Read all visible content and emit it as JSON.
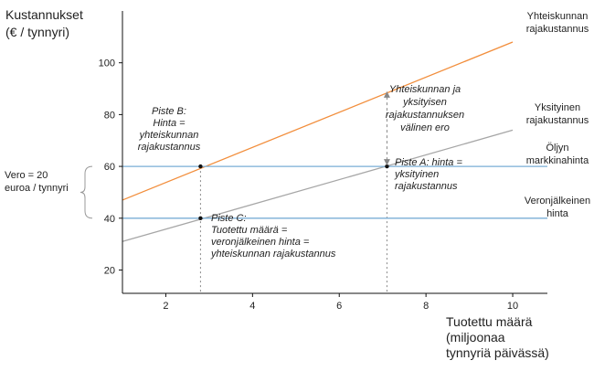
{
  "chart_data": {
    "type": "line",
    "ylabel": [
      "Kustannukset",
      "(€ / tynnyri)"
    ],
    "xlabel": [
      "Tuotettu määrä",
      "(miljoonaa",
      "tynnyriä päivässä)"
    ],
    "xlim": [
      1,
      10.8
    ],
    "ylim": [
      11,
      120
    ],
    "xticks": [
      2,
      4,
      6,
      8,
      10
    ],
    "yticks": [
      20,
      40,
      60,
      80,
      100
    ],
    "grid": false,
    "series": [
      {
        "name": [
          "Yhteiskunnan",
          "rajakustannus"
        ],
        "color": "#f28e3c",
        "x": [
          1,
          10
        ],
        "y": [
          47,
          108
        ]
      },
      {
        "name": [
          "Yksityinen",
          "rajakustannus"
        ],
        "color": "#a6a6a6",
        "x": [
          1,
          10
        ],
        "y": [
          31,
          74
        ]
      },
      {
        "name": [
          "Öljyn",
          "markkinahinta"
        ],
        "color": "#7aaed6",
        "x": [
          1,
          10.8
        ],
        "y": [
          60,
          60
        ]
      },
      {
        "name": [
          "Veronjälkeinen",
          "hinta"
        ],
        "color": "#7aaed6",
        "x": [
          1,
          10.8
        ],
        "y": [
          40,
          40
        ]
      }
    ],
    "points": [
      {
        "x": 2.8,
        "y": 60,
        "text": [
          "Piste B:",
          "Hinta =",
          "yhteiskunnan",
          "rajakustannus"
        ]
      },
      {
        "x": 7.1,
        "y": 60,
        "text": [
          "Piste A: hinta =",
          "yksityinen",
          "rajakustannus"
        ]
      },
      {
        "x": 2.8,
        "y": 40,
        "text": [
          "Piste C:",
          "Tuotettu määrä =",
          "veronjälkeinen hinta =",
          "yhteiskunnan rajakustannus"
        ]
      }
    ],
    "gap_annotation": {
      "x": 7.1,
      "y_from": 60,
      "y_to": 89,
      "text": [
        "Yhteiskunnan ja",
        "yksityisen",
        "rajakustannuksen",
        "välinen ero"
      ]
    },
    "tax_annotation": {
      "y_from": 40,
      "y_to": 60,
      "text": [
        "Vero = 20",
        "euroa / tynnyri"
      ]
    }
  }
}
